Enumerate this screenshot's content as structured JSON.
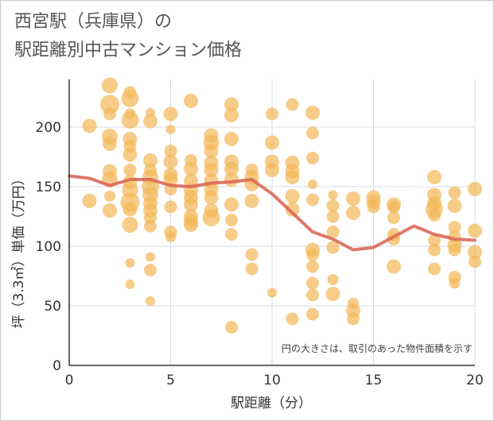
{
  "title": {
    "line1": "西宮駅（兵庫県）の",
    "line2": "駅距離別中古マンション価格"
  },
  "colors": {
    "bubble": "#f2b95a",
    "line": "#d9695a",
    "grid": "#d5dbe3",
    "plot_border": "#333333"
  },
  "chart_data": {
    "type": "scatter",
    "xlabel": "駅距離（分）",
    "ylabel": "坪（3.3㎡）単価（万円）",
    "note": "円の大きさは、取引のあった物件面積を示す",
    "xlim": [
      0,
      20
    ],
    "ylim": [
      0,
      240
    ],
    "xticks": [
      "0",
      "5",
      "10",
      "15",
      "20"
    ],
    "yticks": [
      "0",
      "50",
      "100",
      "150",
      "200"
    ],
    "grid": true,
    "bubbles": [
      {
        "x": 1,
        "y": 201,
        "s": 9
      },
      {
        "x": 1,
        "y": 138,
        "s": 9
      },
      {
        "x": 2,
        "y": 235,
        "s": 10
      },
      {
        "x": 2,
        "y": 219,
        "s": 12
      },
      {
        "x": 2,
        "y": 211,
        "s": 8
      },
      {
        "x": 2,
        "y": 192,
        "s": 10
      },
      {
        "x": 2,
        "y": 186,
        "s": 9
      },
      {
        "x": 2,
        "y": 163,
        "s": 9
      },
      {
        "x": 2,
        "y": 156,
        "s": 10
      },
      {
        "x": 2,
        "y": 142,
        "s": 7
      },
      {
        "x": 2,
        "y": 130,
        "s": 9
      },
      {
        "x": 3,
        "y": 229,
        "s": 8
      },
      {
        "x": 3,
        "y": 224,
        "s": 11
      },
      {
        "x": 3,
        "y": 211,
        "s": 7
      },
      {
        "x": 3,
        "y": 206,
        "s": 11
      },
      {
        "x": 3,
        "y": 190,
        "s": 9
      },
      {
        "x": 3,
        "y": 184,
        "s": 8
      },
      {
        "x": 3,
        "y": 177,
        "s": 9
      },
      {
        "x": 3,
        "y": 164,
        "s": 8
      },
      {
        "x": 3,
        "y": 154,
        "s": 9
      },
      {
        "x": 3,
        "y": 147,
        "s": 10
      },
      {
        "x": 3,
        "y": 137,
        "s": 12
      },
      {
        "x": 3,
        "y": 131,
        "s": 9
      },
      {
        "x": 3,
        "y": 118,
        "s": 10
      },
      {
        "x": 3,
        "y": 86,
        "s": 6
      },
      {
        "x": 3,
        "y": 68,
        "s": 6
      },
      {
        "x": 4,
        "y": 212,
        "s": 6
      },
      {
        "x": 4,
        "y": 205,
        "s": 9
      },
      {
        "x": 4,
        "y": 172,
        "s": 9
      },
      {
        "x": 4,
        "y": 164,
        "s": 8
      },
      {
        "x": 4,
        "y": 158,
        "s": 10
      },
      {
        "x": 4,
        "y": 150,
        "s": 11
      },
      {
        "x": 4,
        "y": 143,
        "s": 10
      },
      {
        "x": 4,
        "y": 136,
        "s": 9
      },
      {
        "x": 4,
        "y": 130,
        "s": 9
      },
      {
        "x": 4,
        "y": 124,
        "s": 8
      },
      {
        "x": 4,
        "y": 117,
        "s": 8
      },
      {
        "x": 4,
        "y": 91,
        "s": 6
      },
      {
        "x": 4,
        "y": 80,
        "s": 8
      },
      {
        "x": 4,
        "y": 54,
        "s": 6
      },
      {
        "x": 5,
        "y": 211,
        "s": 9
      },
      {
        "x": 5,
        "y": 198,
        "s": 6
      },
      {
        "x": 5,
        "y": 180,
        "s": 8
      },
      {
        "x": 5,
        "y": 171,
        "s": 9
      },
      {
        "x": 5,
        "y": 160,
        "s": 9
      },
      {
        "x": 5,
        "y": 156,
        "s": 9
      },
      {
        "x": 5,
        "y": 148,
        "s": 8
      },
      {
        "x": 5,
        "y": 133,
        "s": 8
      },
      {
        "x": 5,
        "y": 112,
        "s": 8
      },
      {
        "x": 5,
        "y": 108,
        "s": 7
      },
      {
        "x": 6,
        "y": 222,
        "s": 9
      },
      {
        "x": 6,
        "y": 172,
        "s": 8
      },
      {
        "x": 6,
        "y": 165,
        "s": 9
      },
      {
        "x": 6,
        "y": 155,
        "s": 9
      },
      {
        "x": 6,
        "y": 147,
        "s": 9
      },
      {
        "x": 6,
        "y": 141,
        "s": 9
      },
      {
        "x": 6,
        "y": 135,
        "s": 9
      },
      {
        "x": 6,
        "y": 125,
        "s": 9
      },
      {
        "x": 6,
        "y": 121,
        "s": 9
      },
      {
        "x": 6,
        "y": 118,
        "s": 9
      },
      {
        "x": 7,
        "y": 193,
        "s": 9
      },
      {
        "x": 7,
        "y": 187,
        "s": 10
      },
      {
        "x": 7,
        "y": 180,
        "s": 9
      },
      {
        "x": 7,
        "y": 170,
        "s": 9
      },
      {
        "x": 7,
        "y": 164,
        "s": 9
      },
      {
        "x": 7,
        "y": 155,
        "s": 9
      },
      {
        "x": 7,
        "y": 148,
        "s": 9
      },
      {
        "x": 7,
        "y": 141,
        "s": 9
      },
      {
        "x": 7,
        "y": 130,
        "s": 9
      },
      {
        "x": 7,
        "y": 124,
        "s": 11
      },
      {
        "x": 8,
        "y": 219,
        "s": 9
      },
      {
        "x": 8,
        "y": 210,
        "s": 9
      },
      {
        "x": 8,
        "y": 190,
        "s": 9
      },
      {
        "x": 8,
        "y": 171,
        "s": 9
      },
      {
        "x": 8,
        "y": 165,
        "s": 9
      },
      {
        "x": 8,
        "y": 156,
        "s": 9
      },
      {
        "x": 8,
        "y": 135,
        "s": 9
      },
      {
        "x": 8,
        "y": 122,
        "s": 8
      },
      {
        "x": 8,
        "y": 110,
        "s": 8
      },
      {
        "x": 8,
        "y": 32,
        "s": 8
      },
      {
        "x": 9,
        "y": 164,
        "s": 8
      },
      {
        "x": 9,
        "y": 158,
        "s": 9
      },
      {
        "x": 9,
        "y": 152,
        "s": 9
      },
      {
        "x": 9,
        "y": 138,
        "s": 9
      },
      {
        "x": 9,
        "y": 93,
        "s": 8
      },
      {
        "x": 9,
        "y": 81,
        "s": 8
      },
      {
        "x": 10,
        "y": 211,
        "s": 8
      },
      {
        "x": 10,
        "y": 187,
        "s": 9
      },
      {
        "x": 10,
        "y": 171,
        "s": 9
      },
      {
        "x": 10,
        "y": 164,
        "s": 9
      },
      {
        "x": 10,
        "y": 61,
        "s": 6
      },
      {
        "x": 11,
        "y": 219,
        "s": 8
      },
      {
        "x": 11,
        "y": 170,
        "s": 9
      },
      {
        "x": 11,
        "y": 163,
        "s": 9
      },
      {
        "x": 11,
        "y": 158,
        "s": 9
      },
      {
        "x": 11,
        "y": 142,
        "s": 9
      },
      {
        "x": 11,
        "y": 131,
        "s": 9
      },
      {
        "x": 11,
        "y": 39,
        "s": 8
      },
      {
        "x": 12,
        "y": 212,
        "s": 9
      },
      {
        "x": 12,
        "y": 195,
        "s": 8
      },
      {
        "x": 12,
        "y": 174,
        "s": 8
      },
      {
        "x": 12,
        "y": 152,
        "s": 6
      },
      {
        "x": 12,
        "y": 139,
        "s": 8
      },
      {
        "x": 12,
        "y": 97,
        "s": 9
      },
      {
        "x": 12,
        "y": 93,
        "s": 8
      },
      {
        "x": 12,
        "y": 83,
        "s": 8
      },
      {
        "x": 12,
        "y": 69,
        "s": 8
      },
      {
        "x": 12,
        "y": 59,
        "s": 8
      },
      {
        "x": 12,
        "y": 43,
        "s": 8
      },
      {
        "x": 13,
        "y": 143,
        "s": 6
      },
      {
        "x": 13,
        "y": 134,
        "s": 8
      },
      {
        "x": 13,
        "y": 125,
        "s": 8
      },
      {
        "x": 13,
        "y": 112,
        "s": 8
      },
      {
        "x": 13,
        "y": 99,
        "s": 8
      },
      {
        "x": 13,
        "y": 72,
        "s": 7
      },
      {
        "x": 13,
        "y": 60,
        "s": 9
      },
      {
        "x": 14,
        "y": 140,
        "s": 9
      },
      {
        "x": 14,
        "y": 128,
        "s": 9
      },
      {
        "x": 14,
        "y": 52,
        "s": 7
      },
      {
        "x": 14,
        "y": 46,
        "s": 9
      },
      {
        "x": 14,
        "y": 39,
        "s": 8
      },
      {
        "x": 15,
        "y": 141,
        "s": 9
      },
      {
        "x": 15,
        "y": 137,
        "s": 9
      },
      {
        "x": 15,
        "y": 133,
        "s": 8
      },
      {
        "x": 16,
        "y": 135,
        "s": 9
      },
      {
        "x": 16,
        "y": 133,
        "s": 8
      },
      {
        "x": 16,
        "y": 124,
        "s": 8
      },
      {
        "x": 16,
        "y": 110,
        "s": 8
      },
      {
        "x": 16,
        "y": 106,
        "s": 8
      },
      {
        "x": 16,
        "y": 83,
        "s": 9
      },
      {
        "x": 18,
        "y": 158,
        "s": 9
      },
      {
        "x": 18,
        "y": 143,
        "s": 9
      },
      {
        "x": 18,
        "y": 136,
        "s": 9
      },
      {
        "x": 18,
        "y": 131,
        "s": 11
      },
      {
        "x": 18,
        "y": 126,
        "s": 8
      },
      {
        "x": 18,
        "y": 105,
        "s": 8
      },
      {
        "x": 18,
        "y": 97,
        "s": 8
      },
      {
        "x": 18,
        "y": 81,
        "s": 8
      },
      {
        "x": 19,
        "y": 145,
        "s": 8
      },
      {
        "x": 19,
        "y": 134,
        "s": 9
      },
      {
        "x": 19,
        "y": 116,
        "s": 8
      },
      {
        "x": 19,
        "y": 108,
        "s": 8
      },
      {
        "x": 19,
        "y": 101,
        "s": 9
      },
      {
        "x": 19,
        "y": 97,
        "s": 8
      },
      {
        "x": 19,
        "y": 74,
        "s": 8
      },
      {
        "x": 19,
        "y": 69,
        "s": 7
      },
      {
        "x": 20,
        "y": 148,
        "s": 9
      },
      {
        "x": 20,
        "y": 113,
        "s": 9
      },
      {
        "x": 20,
        "y": 95,
        "s": 9
      },
      {
        "x": 20,
        "y": 87,
        "s": 8
      }
    ],
    "series": [
      {
        "x": [
          0,
          1,
          2,
          3,
          4,
          5,
          6,
          7,
          8,
          9,
          10,
          11,
          12,
          13,
          14,
          15,
          16,
          17,
          18,
          19,
          20
        ],
        "values": [
          159,
          157,
          151,
          156,
          156,
          151,
          150,
          153,
          154,
          156,
          144,
          128,
          112,
          106,
          97,
          99,
          108,
          117,
          110,
          106,
          105
        ]
      }
    ]
  }
}
